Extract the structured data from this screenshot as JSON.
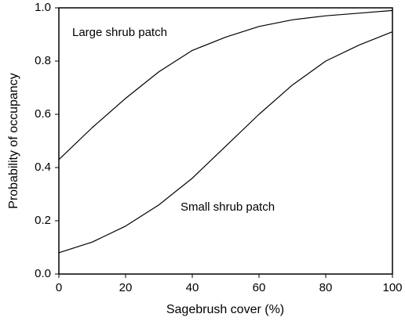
{
  "chart_data": {
    "type": "line",
    "x_label": "Sagebrush cover (%)",
    "y_label": "Probability of occupancy",
    "x": [
      0,
      10,
      20,
      30,
      40,
      50,
      60,
      70,
      80,
      90,
      100
    ],
    "series": [
      {
        "name": "Large shrub patch",
        "color": "#000000",
        "values": [
          0.43,
          0.55,
          0.66,
          0.76,
          0.84,
          0.89,
          0.93,
          0.955,
          0.97,
          0.98,
          0.99
        ]
      },
      {
        "name": "Small shrub patch",
        "color": "#000000",
        "values": [
          0.08,
          0.12,
          0.18,
          0.26,
          0.36,
          0.48,
          0.6,
          0.71,
          0.8,
          0.86,
          0.91
        ]
      }
    ],
    "xlim": [
      0,
      100
    ],
    "xticks": [
      0,
      20,
      40,
      60,
      80,
      100
    ],
    "ylim": [
      0,
      1
    ],
    "yticks": [
      {
        "value": 0,
        "label": "0.0"
      },
      0.2,
      0.4,
      0.6,
      0.8,
      {
        "value": 1,
        "label": "1.0"
      }
    ],
    "grid": false
  }
}
